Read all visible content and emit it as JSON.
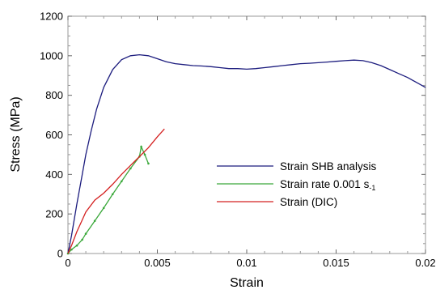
{
  "chart_data": {
    "type": "line",
    "xlabel": "Strain",
    "ylabel": "Stress (MPa)",
    "xlim": [
      0,
      0.02
    ],
    "ylim": [
      0,
      1200
    ],
    "x_ticks": [
      0,
      0.005,
      0.01,
      0.015,
      0.02
    ],
    "x_tick_labels": [
      "0",
      "0.005",
      "0.01",
      "0.015",
      "0.02"
    ],
    "y_ticks": [
      0,
      200,
      400,
      600,
      800,
      1000,
      1200
    ],
    "y_tick_labels": [
      "0",
      "200",
      "400",
      "600",
      "800",
      "1000",
      "1200"
    ],
    "grid": false,
    "legend_position": "right",
    "series": [
      {
        "name": "Strain SHB analysis",
        "legend_main": "Strain SHB analysis",
        "legend_sub": "",
        "color": "#1c1c7e",
        "x": [
          0,
          0.0002,
          0.0005,
          0.0008,
          0.001,
          0.0013,
          0.0016,
          0.002,
          0.0025,
          0.003,
          0.0035,
          0.004,
          0.0045,
          0.005,
          0.0055,
          0.006,
          0.0065,
          0.007,
          0.0075,
          0.008,
          0.0085,
          0.009,
          0.0095,
          0.01,
          0.0105,
          0.011,
          0.0115,
          0.012,
          0.0125,
          0.013,
          0.0135,
          0.014,
          0.0145,
          0.015,
          0.0155,
          0.016,
          0.0165,
          0.017,
          0.0175,
          0.018,
          0.0185,
          0.019,
          0.0195,
          0.02
        ],
        "y": [
          0,
          90,
          250,
          400,
          500,
          620,
          730,
          840,
          930,
          980,
          1000,
          1005,
          1000,
          985,
          970,
          960,
          955,
          950,
          948,
          945,
          940,
          935,
          935,
          932,
          935,
          940,
          945,
          950,
          955,
          960,
          962,
          965,
          968,
          972,
          975,
          978,
          975,
          965,
          950,
          930,
          910,
          890,
          865,
          840
        ]
      },
      {
        "name": "Strain rate 0.001 s-1",
        "legend_main": "Strain rate 0.001 s",
        "legend_sub": "-1",
        "color": "#3aa83a",
        "x": [
          0,
          0.0002,
          0.0005,
          0.0008,
          0.001,
          0.0015,
          0.002,
          0.0025,
          0.003,
          0.0035,
          0.004,
          0.0041,
          0.0043,
          0.0045
        ],
        "y": [
          0,
          20,
          40,
          70,
          100,
          165,
          230,
          300,
          365,
          430,
          490,
          540,
          500,
          455
        ]
      },
      {
        "name": "Strain (DIC)",
        "legend_main": "Strain (DIC)",
        "legend_sub": "",
        "color": "#d42020",
        "x": [
          0,
          0.0002,
          0.0005,
          0.0008,
          0.001,
          0.0015,
          0.002,
          0.0025,
          0.003,
          0.0035,
          0.004,
          0.0045,
          0.005,
          0.0054
        ],
        "y": [
          0,
          40,
          110,
          170,
          210,
          270,
          305,
          350,
          400,
          445,
          490,
          535,
          590,
          630
        ]
      }
    ]
  }
}
